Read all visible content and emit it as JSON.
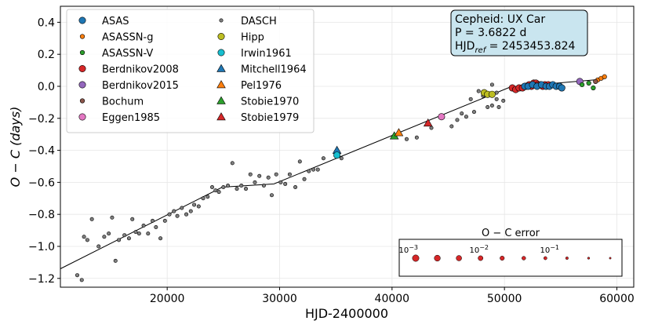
{
  "chart_data": {
    "type": "scatter",
    "xlabel": "HJD-2400000",
    "ylabel": "O − C (days)",
    "xlim": [
      10500,
      61500
    ],
    "ylim": [
      -1.255,
      0.5
    ],
    "xticks": [
      20000,
      30000,
      40000,
      50000,
      60000
    ],
    "yticks": [
      -1.2,
      -1.0,
      -0.8,
      -0.6,
      -0.4,
      -0.2,
      0.0,
      0.2,
      0.4
    ],
    "xtick_labels": [
      "20000",
      "30000",
      "40000",
      "50000",
      "60000"
    ],
    "ytick_labels": [
      "−1.2",
      "−1.0",
      "−0.8",
      "−0.6",
      "−0.4",
      "−0.2",
      "0.0",
      "0.2",
      "0.4"
    ],
    "grid": true,
    "info_box": {
      "line1": "Cepheid: UX Car",
      "line2": "P = 3.6822 d",
      "line3_prefix": "HJD",
      "line3_sub": "ref",
      "line3_suffix": " = 2453453.824"
    },
    "legend": {
      "placement": "top-left",
      "entries": [
        {
          "label": "ASAS",
          "color": "#1f77b4",
          "marker": "circle",
          "size": "large"
        },
        {
          "label": "ASASSN-g",
          "color": "#ff7f0e",
          "marker": "circle",
          "size": "small"
        },
        {
          "label": "ASASSN-V",
          "color": "#2ca02c",
          "marker": "circle",
          "size": "small"
        },
        {
          "label": "Berdnikov2008",
          "color": "#d62728",
          "marker": "circle",
          "size": "large"
        },
        {
          "label": "Berdnikov2015",
          "color": "#9467bd",
          "marker": "circle",
          "size": "large"
        },
        {
          "label": "Bochum",
          "color": "#8c564b",
          "marker": "circle",
          "size": "small"
        },
        {
          "label": "Eggen1985",
          "color": "#e377c2",
          "marker": "circle",
          "size": "large"
        },
        {
          "label": "DASCH",
          "color": "#7f7f7f",
          "marker": "circle",
          "size": "tiny"
        },
        {
          "label": "Hipp",
          "color": "#bcbd22",
          "marker": "circle",
          "size": "large"
        },
        {
          "label": "Irwin1961",
          "color": "#17becf",
          "marker": "circle",
          "size": "large"
        },
        {
          "label": "Mitchell1964",
          "color": "#1f77b4",
          "marker": "triangle",
          "size": "large"
        },
        {
          "label": "Pel1976",
          "color": "#ff7f0e",
          "marker": "triangle",
          "size": "large"
        },
        {
          "label": "Stobie1970",
          "color": "#2ca02c",
          "marker": "triangle",
          "size": "large"
        },
        {
          "label": "Stobie1979",
          "color": "#d62728",
          "marker": "triangle",
          "size": "large"
        }
      ]
    },
    "fit_line": {
      "x": [
        10500,
        24900,
        29500,
        50500,
        58800
      ],
      "y": [
        -1.14,
        -0.63,
        -0.61,
        -0.005,
        0.045
      ]
    },
    "series": [
      {
        "name": "DASCH",
        "color": "#7f7f7f",
        "marker": "circle",
        "size": "tiny",
        "points": [
          [
            12000,
            -1.18
          ],
          [
            12400,
            -1.21
          ],
          [
            12600,
            -0.94
          ],
          [
            12900,
            -0.96
          ],
          [
            13300,
            -0.83
          ],
          [
            13900,
            -1.0
          ],
          [
            14400,
            -0.94
          ],
          [
            14800,
            -0.92
          ],
          [
            15100,
            -0.82
          ],
          [
            15400,
            -1.09
          ],
          [
            15700,
            -0.96
          ],
          [
            16200,
            -0.93
          ],
          [
            16600,
            -0.95
          ],
          [
            16900,
            -0.83
          ],
          [
            17200,
            -0.91
          ],
          [
            17500,
            -0.92
          ],
          [
            17900,
            -0.87
          ],
          [
            18300,
            -0.92
          ],
          [
            18700,
            -0.84
          ],
          [
            19000,
            -0.88
          ],
          [
            19400,
            -0.95
          ],
          [
            19800,
            -0.84
          ],
          [
            20200,
            -0.8
          ],
          [
            20600,
            -0.78
          ],
          [
            20900,
            -0.81
          ],
          [
            21300,
            -0.76
          ],
          [
            21700,
            -0.8
          ],
          [
            22100,
            -0.78
          ],
          [
            22400,
            -0.74
          ],
          [
            22800,
            -0.75
          ],
          [
            23200,
            -0.7
          ],
          [
            23600,
            -0.69
          ],
          [
            24000,
            -0.63
          ],
          [
            24300,
            -0.65
          ],
          [
            24600,
            -0.66
          ],
          [
            25000,
            -0.63
          ],
          [
            25400,
            -0.62
          ],
          [
            25800,
            -0.48
          ],
          [
            26200,
            -0.64
          ],
          [
            26600,
            -0.62
          ],
          [
            27000,
            -0.64
          ],
          [
            27400,
            -0.55
          ],
          [
            27800,
            -0.6
          ],
          [
            28200,
            -0.56
          ],
          [
            28600,
            -0.62
          ],
          [
            29000,
            -0.57
          ],
          [
            29300,
            -0.68
          ],
          [
            29700,
            -0.55
          ],
          [
            30100,
            -0.6
          ],
          [
            30500,
            -0.61
          ],
          [
            30900,
            -0.55
          ],
          [
            31400,
            -0.63
          ],
          [
            31800,
            -0.47
          ],
          [
            32200,
            -0.58
          ],
          [
            32600,
            -0.53
          ],
          [
            33000,
            -0.52
          ],
          [
            33400,
            -0.52
          ],
          [
            33900,
            -0.45
          ],
          [
            35500,
            -0.45
          ],
          [
            41300,
            -0.33
          ],
          [
            42200,
            -0.32
          ],
          [
            43500,
            -0.26
          ],
          [
            45300,
            -0.25
          ],
          [
            45800,
            -0.21
          ],
          [
            46200,
            -0.17
          ],
          [
            46600,
            -0.19
          ],
          [
            47000,
            -0.08
          ],
          [
            47300,
            -0.16
          ],
          [
            47700,
            -0.03
          ],
          [
            48100,
            -0.06
          ],
          [
            48500,
            -0.13
          ],
          [
            48900,
            -0.12
          ],
          [
            49300,
            -0.08
          ],
          [
            49500,
            -0.13
          ],
          [
            49900,
            -0.09
          ],
          [
            48900,
            0.01
          ],
          [
            49300,
            -0.04
          ]
        ]
      },
      {
        "name": "Mitchell1964",
        "color": "#1f77b4",
        "marker": "triangle",
        "size": "large",
        "points": [
          [
            35100,
            -0.4
          ]
        ]
      },
      {
        "name": "Irwin1961",
        "color": "#17becf",
        "marker": "circle",
        "size": "large",
        "points": [
          [
            35100,
            -0.43
          ]
        ]
      },
      {
        "name": "Stobie1970",
        "color": "#2ca02c",
        "marker": "triangle",
        "size": "large",
        "points": [
          [
            40200,
            -0.31
          ]
        ]
      },
      {
        "name": "Pel1976",
        "color": "#ff7f0e",
        "marker": "triangle",
        "size": "large",
        "points": [
          [
            40600,
            -0.29
          ]
        ]
      },
      {
        "name": "Stobie1979",
        "color": "#d62728",
        "marker": "triangle",
        "size": "large",
        "points": [
          [
            43200,
            -0.23
          ]
        ]
      },
      {
        "name": "Eggen1985",
        "color": "#e377c2",
        "marker": "circle",
        "size": "large",
        "points": [
          [
            44400,
            -0.19
          ]
        ]
      },
      {
        "name": "Hipp",
        "color": "#bcbd22",
        "marker": "circle",
        "size": "large",
        "points": [
          [
            48200,
            -0.04
          ],
          [
            48500,
            -0.05
          ],
          [
            48900,
            -0.05
          ]
        ]
      },
      {
        "name": "Berdnikov2008",
        "color": "#d62728",
        "marker": "circle",
        "size": "large",
        "points": [
          [
            50700,
            -0.01
          ],
          [
            51000,
            -0.02
          ],
          [
            51300,
            -0.01
          ],
          [
            51600,
            -0.01
          ],
          [
            51900,
            0.0
          ],
          [
            52200,
            0.01
          ],
          [
            52400,
            0.0
          ],
          [
            52600,
            0.02
          ],
          [
            52800,
            0.02
          ],
          [
            53000,
            0.01
          ],
          [
            53200,
            0.01
          ],
          [
            53400,
            0.0
          ],
          [
            53600,
            0.01
          ],
          [
            53900,
            0.01
          ]
        ]
      },
      {
        "name": "ASAS",
        "color": "#1f77b4",
        "marker": "circle",
        "size": "large",
        "points": [
          [
            51800,
            0.0
          ],
          [
            52100,
            0.0
          ],
          [
            52500,
            0.01
          ],
          [
            52900,
            0.0
          ],
          [
            53300,
            0.01
          ],
          [
            53700,
            0.0
          ],
          [
            54000,
            0.0
          ],
          [
            54300,
            0.01
          ],
          [
            54600,
            0.0
          ],
          [
            54900,
            0.0
          ],
          [
            55100,
            -0.01
          ]
        ]
      },
      {
        "name": "Berdnikov2015",
        "color": "#9467bd",
        "marker": "circle",
        "size": "large",
        "points": [
          [
            56700,
            0.03
          ]
        ]
      },
      {
        "name": "ASASSN-V",
        "color": "#2ca02c",
        "marker": "circle",
        "size": "small",
        "points": [
          [
            56900,
            0.01
          ],
          [
            57500,
            0.02
          ],
          [
            57900,
            -0.01
          ]
        ]
      },
      {
        "name": "ASASSN-g",
        "color": "#ff7f0e",
        "marker": "circle",
        "size": "small",
        "points": [
          [
            58300,
            0.04
          ],
          [
            58600,
            0.05
          ],
          [
            58900,
            0.06
          ]
        ]
      },
      {
        "name": "Bochum",
        "color": "#8c564b",
        "marker": "circle",
        "size": "small",
        "points": [
          [
            58100,
            0.03
          ]
        ]
      }
    ],
    "error_inset": {
      "title": "O − C error",
      "tick_labels": [
        "10",
        "10",
        "10"
      ],
      "tick_exponents": [
        "−3",
        "−2",
        "−1"
      ],
      "tick_values": [
        0.001,
        0.01,
        0.1
      ],
      "samples": [
        0.0013,
        0.0025,
        0.005,
        0.01,
        0.02,
        0.04,
        0.08,
        0.16,
        0.3,
        0.6
      ],
      "color": "#d62728"
    }
  }
}
